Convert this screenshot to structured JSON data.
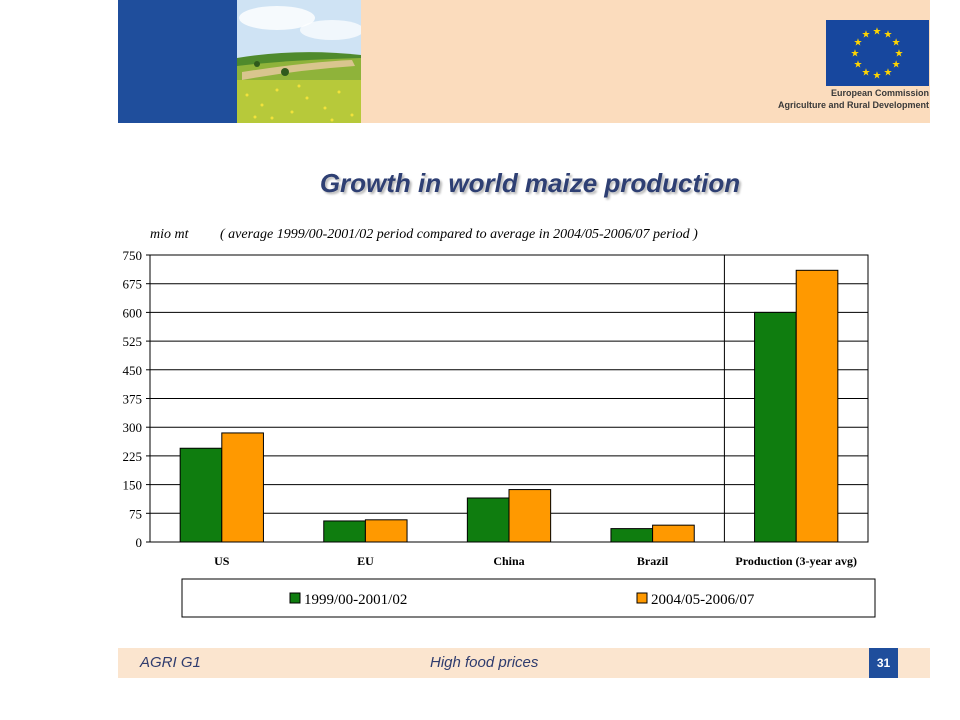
{
  "header": {
    "org_line1": "European Commission",
    "org_line2": "Agriculture and Rural Development",
    "colors": {
      "band": "#fbdcbd",
      "blue": "#1f4e9c"
    }
  },
  "chart_data": {
    "type": "bar",
    "title": "Growth in world maize production",
    "ylabel": "mio mt",
    "subtitle": "( average 1999/00-2001/02 period compared to average in 2004/05-2006/07 period )",
    "categories": [
      "US",
      "EU",
      "China",
      "Brazil",
      "Production (3-year avg)"
    ],
    "series": [
      {
        "name": "1999/00-2001/02",
        "color": "#0f7d0f",
        "values": [
          245,
          55,
          115,
          35,
          600
        ]
      },
      {
        "name": "2004/05-2006/07",
        "color": "#ff9900",
        "values": [
          285,
          58,
          137,
          44,
          710
        ]
      }
    ],
    "ylim": [
      0,
      750
    ],
    "yticks": [
      "0",
      "75",
      "150",
      "225",
      "300",
      "375",
      "450",
      "525",
      "600",
      "675",
      "750"
    ],
    "grid": true,
    "legend_position": "bottom"
  },
  "footer": {
    "left": "AGRI G1",
    "middle": "High food prices",
    "page": "31"
  }
}
